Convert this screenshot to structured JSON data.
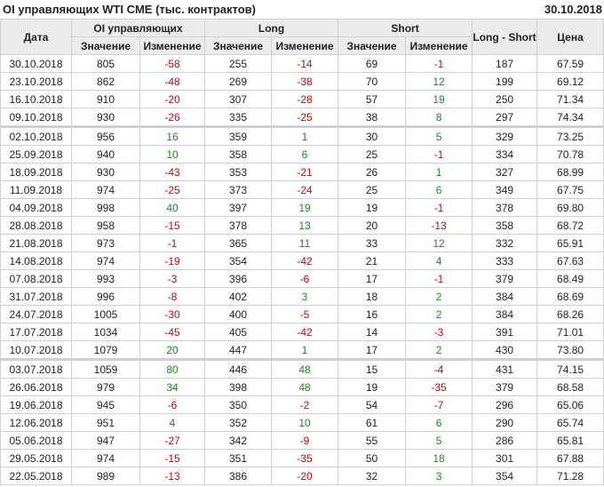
{
  "title": "OI управляющих WTI CME (тыс. контрактов)",
  "date": "30.10.2018",
  "colors": {
    "negative": "#d00000",
    "positive": "#1a8a1a",
    "header_bg": "#ebebeb"
  },
  "headers": {
    "date": "Дата",
    "oi": "OI управляющих",
    "long": "Long",
    "short": "Short",
    "long_short": "Long - Short",
    "price": "Цена",
    "value": "Значение",
    "change": "Изменение"
  },
  "rows": [
    [
      "30.10.2018",
      "805",
      "-58",
      "255",
      "-14",
      "69",
      "-1",
      "187",
      "67.59"
    ],
    [
      "23.10.2018",
      "862",
      "-48",
      "269",
      "-38",
      "70",
      "12",
      "199",
      "69.12"
    ],
    [
      "16.10.2018",
      "910",
      "-20",
      "307",
      "-28",
      "57",
      "19",
      "250",
      "71.34"
    ],
    [
      "09.10.2018",
      "930",
      "-26",
      "335",
      "-25",
      "38",
      "8",
      "297",
      "74.34"
    ],
    [
      "02.10.2018",
      "956",
      "16",
      "359",
      "1",
      "30",
      "5",
      "329",
      "73.25"
    ],
    [
      "25.09.2018",
      "940",
      "10",
      "358",
      "6",
      "25",
      "-1",
      "334",
      "70.78"
    ],
    [
      "18.09.2018",
      "930",
      "-43",
      "353",
      "-21",
      "26",
      "1",
      "327",
      "68.99"
    ],
    [
      "11.09.2018",
      "974",
      "-25",
      "373",
      "-24",
      "25",
      "6",
      "349",
      "67.75"
    ],
    [
      "04.09.2018",
      "998",
      "40",
      "397",
      "19",
      "19",
      "-1",
      "378",
      "69.80"
    ],
    [
      "28.08.2018",
      "958",
      "-15",
      "378",
      "13",
      "20",
      "-13",
      "358",
      "68.72"
    ],
    [
      "21.08.2018",
      "973",
      "-1",
      "365",
      "11",
      "33",
      "12",
      "332",
      "65.91"
    ],
    [
      "14.08.2018",
      "974",
      "-19",
      "354",
      "-42",
      "21",
      "4",
      "333",
      "67.63"
    ],
    [
      "07.08.2018",
      "993",
      "-3",
      "396",
      "-6",
      "17",
      "-1",
      "379",
      "68.49"
    ],
    [
      "31.07.2018",
      "996",
      "-8",
      "402",
      "3",
      "18",
      "2",
      "384",
      "68.69"
    ],
    [
      "24.07.2018",
      "1005",
      "-30",
      "400",
      "-5",
      "16",
      "2",
      "384",
      "68.26"
    ],
    [
      "17.07.2018",
      "1034",
      "-45",
      "405",
      "-42",
      "14",
      "-3",
      "391",
      "71.01"
    ],
    [
      "10.07.2018",
      "1079",
      "20",
      "447",
      "1",
      "17",
      "2",
      "430",
      "73.80"
    ],
    [
      "03.07.2018",
      "1059",
      "80",
      "446",
      "48",
      "15",
      "-4",
      "431",
      "74.15"
    ],
    [
      "26.06.2018",
      "979",
      "34",
      "398",
      "48",
      "19",
      "-35",
      "379",
      "68.58"
    ],
    [
      "19.06.2018",
      "945",
      "-6",
      "350",
      "-2",
      "54",
      "-7",
      "296",
      "65.06"
    ],
    [
      "12.06.2018",
      "951",
      "4",
      "352",
      "10",
      "61",
      "6",
      "290",
      "65.74"
    ],
    [
      "05.06.2018",
      "947",
      "-27",
      "342",
      "-9",
      "55",
      "5",
      "286",
      "65.81"
    ],
    [
      "29.05.2018",
      "974",
      "-15",
      "351",
      "-35",
      "50",
      "18",
      "301",
      "67.88"
    ],
    [
      "22.05.2018",
      "989",
      "-13",
      "386",
      "-20",
      "32",
      "3",
      "354",
      "71.28"
    ]
  ]
}
